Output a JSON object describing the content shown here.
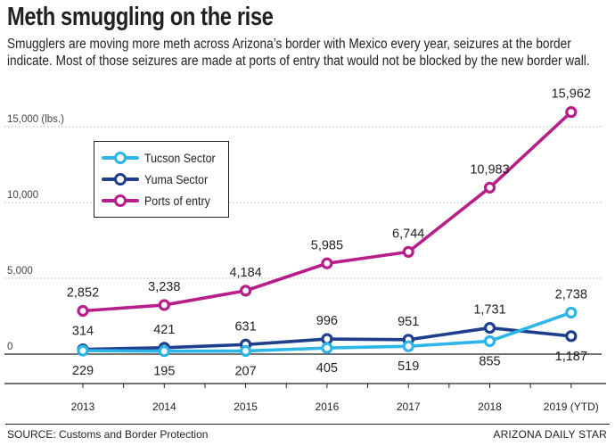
{
  "title": "Meth smuggling on the rise",
  "subtitle": "Smugglers are moving more meth across Arizona’s border with Mexico every year, seizures at the border indicate. Most of those seizures are made at ports of entry that would not be blocked by the new border wall.",
  "source": "SOURCE: Customs and Border Protection",
  "credit": "ARIZONA DAILY STAR",
  "chart_data": {
    "type": "line",
    "title": "Meth smuggling on the rise",
    "xlabel": "",
    "ylabel": "(lbs.)",
    "categories": [
      "2013",
      "2014",
      "2015",
      "2016",
      "2017",
      "2018",
      "2019 (YTD)"
    ],
    "ylim": [
      0,
      16500
    ],
    "yticks": [
      0,
      5000,
      10000,
      15000
    ],
    "ytick_labels": [
      "0",
      "5,000",
      "10,000",
      "15,000 (lbs.)"
    ],
    "legend_position": "top-left",
    "series": [
      {
        "name": "Tucson Sector",
        "color": "#2bb5e8",
        "values": [
          229,
          195,
          207,
          405,
          519,
          855,
          2738
        ],
        "labels": [
          "229",
          "195",
          "207",
          "405",
          "519",
          "855",
          "2,738"
        ],
        "label_side": [
          "below",
          "below",
          "below",
          "below",
          "below",
          "below",
          "above"
        ]
      },
      {
        "name": "Yuma Sector",
        "color": "#1f3f8c",
        "values": [
          314,
          421,
          631,
          996,
          951,
          1731,
          1187
        ],
        "labels": [
          "314",
          "421",
          "631",
          "996",
          "951",
          "1,731",
          "1,187"
        ],
        "label_side": [
          "above",
          "above",
          "above",
          "above",
          "above",
          "above",
          "below"
        ]
      },
      {
        "name": "Ports of entry",
        "color": "#b81e8a",
        "values": [
          2852,
          3238,
          4184,
          5985,
          6744,
          10983,
          15962
        ],
        "labels": [
          "2,852",
          "3,238",
          "4,184",
          "5,985",
          "6,744",
          "10,983",
          "15,962"
        ],
        "label_side": [
          "above",
          "above",
          "above",
          "above",
          "above",
          "above",
          "above"
        ]
      }
    ]
  }
}
